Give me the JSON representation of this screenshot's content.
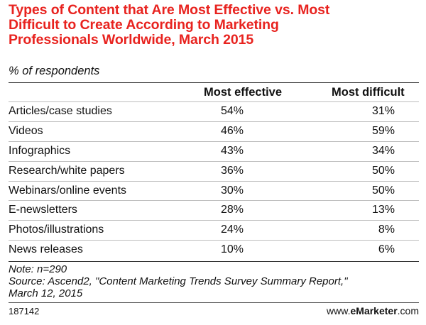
{
  "chart_data": {
    "type": "table",
    "title_lines": [
      "Types of Content that Are Most Effective vs. Most",
      "Difficult to Create According to Marketing",
      "Professionals Worldwide, March 2015"
    ],
    "subtitle": "% of respondents",
    "columns": [
      "Most effective",
      "Most difficult"
    ],
    "rows": [
      {
        "label": "Articles/case studies",
        "values": [
          "54%",
          "31%"
        ]
      },
      {
        "label": "Videos",
        "values": [
          "46%",
          "59%"
        ]
      },
      {
        "label": "Infographics",
        "values": [
          "43%",
          "34%"
        ]
      },
      {
        "label": "Research/white papers",
        "values": [
          "36%",
          "50%"
        ]
      },
      {
        "label": "Webinars/online events",
        "values": [
          "30%",
          "50%"
        ]
      },
      {
        "label": "E-newsletters",
        "values": [
          "28%",
          "13%"
        ]
      },
      {
        "label": "Photos/illustrations",
        "values": [
          "24%",
          "8%"
        ]
      },
      {
        "label": "News releases",
        "values": [
          "10%",
          "6%"
        ]
      }
    ],
    "notes": [
      "Note: n=290",
      "Source: Ascend2, \"Content Marketing Trends Survey Summary Report,\"",
      "March 12, 2015"
    ],
    "chart_id": "187142",
    "brand": {
      "prefix": "www.",
      "e": "e",
      "name": "Marketer",
      "suffix": ".com"
    },
    "colors": {
      "title": "#e8231f",
      "text": "#111111",
      "rule": "#333333"
    }
  }
}
